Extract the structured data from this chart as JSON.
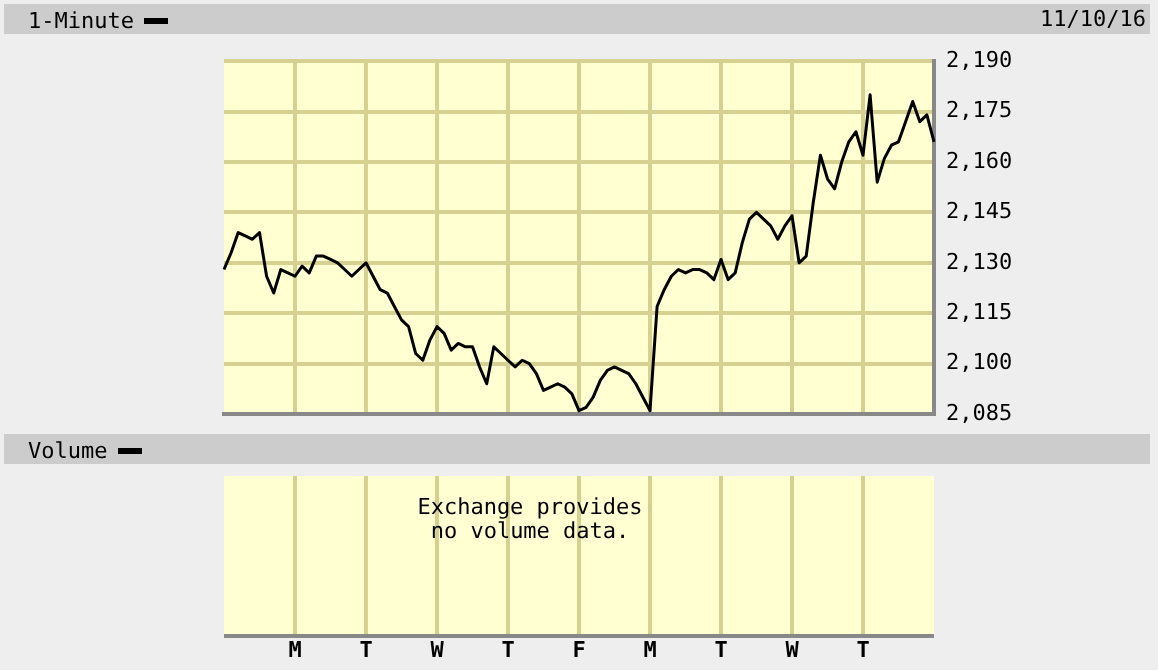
{
  "chart_data": [
    {
      "type": "line",
      "legend": "top left",
      "grid": true,
      "tick_labels": "y",
      "marker": "none",
      "line_style": "solid",
      "annotations": [
        "11/10/16"
      ],
      "categories": [
        null,
        null,
        null,
        null,
        null,
        null,
        null,
        null,
        null,
        null,
        "M",
        null,
        null,
        null,
        null,
        null,
        null,
        null,
        null,
        null,
        "T",
        null,
        null,
        null,
        null,
        null,
        null,
        null,
        null,
        null,
        "W",
        null,
        null,
        null,
        null,
        null,
        null,
        null,
        null,
        null,
        "T",
        null,
        null,
        null,
        null,
        null,
        null,
        null,
        null,
        null,
        "F",
        null,
        null,
        null,
        null,
        null,
        null,
        null,
        null,
        null,
        "M",
        null,
        null,
        null,
        null,
        null,
        null,
        null,
        null,
        null,
        "T",
        null,
        null,
        null,
        null,
        null,
        null,
        null,
        null,
        null,
        "W",
        null,
        null,
        null,
        null,
        null,
        null,
        null,
        null,
        null,
        "T",
        null,
        null,
        null,
        null,
        null,
        null,
        null,
        null,
        null,
        null
      ],
      "ylim": [
        2085,
        2190
      ],
      "yticks": [
        {
          "value": 2085,
          "label": "2,085"
        },
        {
          "value": 2100,
          "label": "2,100"
        },
        {
          "value": 2115,
          "label": "2,115"
        },
        {
          "value": 2130,
          "label": "2,130"
        },
        {
          "value": 2145,
          "label": "2,145"
        },
        {
          "value": 2160,
          "label": "2,160"
        },
        {
          "value": 2175,
          "label": "2,175"
        },
        {
          "value": 2190,
          "label": "2,190"
        }
      ],
      "series": [
        {
          "name": "1-Minute",
          "color": "#000000",
          "values": [
            2128,
            2133,
            2139,
            2138,
            2137,
            2139,
            2126,
            2121,
            2128,
            2127,
            2126,
            2129,
            2127,
            2132,
            2132,
            2131,
            2130,
            2128,
            2126,
            2128,
            2130,
            2126,
            2122,
            2121,
            2117,
            2113,
            2111,
            2103,
            2101,
            2107,
            2111,
            2109,
            2104,
            2106,
            2105,
            2105,
            2099,
            2094,
            2105,
            2103,
            2101,
            2099,
            2101,
            2100,
            2097,
            2092,
            2093,
            2094,
            2093,
            2091,
            2086,
            2087,
            2090,
            2095,
            2098,
            2099,
            2098,
            2097,
            2094,
            2090,
            2086,
            2117,
            2122,
            2126,
            2128,
            2127,
            2128,
            2128,
            2127,
            2125,
            2131,
            2125,
            2127,
            2136,
            2143,
            2145,
            2143,
            2141,
            2137,
            2141,
            2144,
            2130,
            2132,
            2148,
            2162,
            2155,
            2152,
            2160,
            2166,
            2169,
            2162,
            2180,
            2154,
            2161,
            2165,
            2166,
            2172,
            2178,
            2172,
            2174,
            2166
          ]
        }
      ]
    },
    {
      "type": "other",
      "title": "Volume",
      "annotations": [
        "Exchange provides\nno volume data."
      ]
    }
  ]
}
